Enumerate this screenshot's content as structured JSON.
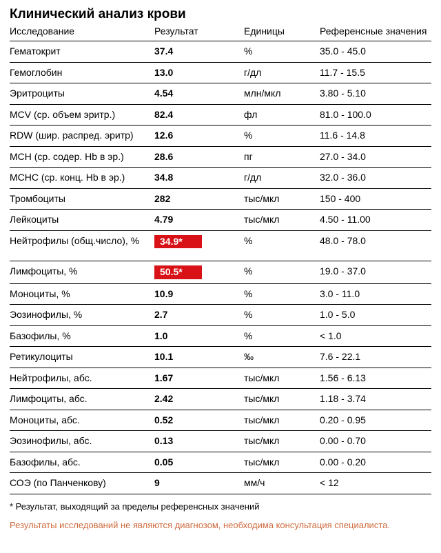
{
  "title": "Клинический анализ крови",
  "columns": [
    "Исследование",
    "Результат",
    "Единицы",
    "Референсные значения"
  ],
  "rows": [
    {
      "name": "Гематокрит",
      "result": "37.4",
      "unit": "%",
      "ref": "35.0 - 45.0",
      "flag": false
    },
    {
      "name": "Гемоглобин",
      "result": "13.0",
      "unit": "г/дл",
      "ref": "11.7 - 15.5",
      "flag": false
    },
    {
      "name": "Эритроциты",
      "result": "4.54",
      "unit": "млн/мкл",
      "ref": "3.80 - 5.10",
      "flag": false
    },
    {
      "name": "MCV (ср. объем эритр.)",
      "result": "82.4",
      "unit": "фл",
      "ref": "81.0 - 100.0",
      "flag": false
    },
    {
      "name": "RDW (шир. распред. эритр)",
      "result": "12.6",
      "unit": "%",
      "ref": "11.6 - 14.8",
      "flag": false
    },
    {
      "name": "MCH (ср. содер. Hb в эр.)",
      "result": "28.6",
      "unit": "пг",
      "ref": "27.0 - 34.0",
      "flag": false
    },
    {
      "name": "MCHC (ср. конц. Hb в эр.)",
      "result": "34.8",
      "unit": "г/дл",
      "ref": "32.0 - 36.0",
      "flag": false
    },
    {
      "name": "Тромбоциты",
      "result": "282",
      "unit": "тыс/мкл",
      "ref": "150 - 400",
      "flag": false
    },
    {
      "name": "Лейкоциты",
      "result": "4.79",
      "unit": "тыс/мкл",
      "ref": "4.50 - 11.00",
      "flag": false
    },
    {
      "name": "Нейтрофилы (общ.число), %",
      "result": "34.9*",
      "unit": "%",
      "ref": "48.0 - 78.0",
      "flag": true,
      "gapAfter": true
    },
    {
      "name": "Лимфоциты, %",
      "result": "50.5*",
      "unit": "%",
      "ref": "19.0 - 37.0",
      "flag": true
    },
    {
      "name": "Моноциты, %",
      "result": "10.9",
      "unit": "%",
      "ref": "3.0 - 11.0",
      "flag": false
    },
    {
      "name": "Эозинофилы, %",
      "result": "2.7",
      "unit": "%",
      "ref": "1.0 - 5.0",
      "flag": false
    },
    {
      "name": "Базофилы, %",
      "result": "1.0",
      "unit": "%",
      "ref": "< 1.0",
      "flag": false
    },
    {
      "name": "Ретикулоциты",
      "result": "10.1",
      "unit": "‰",
      "ref": "7.6 - 22.1",
      "flag": false
    },
    {
      "name": "Нейтрофилы, абс.",
      "result": "1.67",
      "unit": "тыс/мкл",
      "ref": "1.56 - 6.13",
      "flag": false
    },
    {
      "name": "Лимфоциты, абс.",
      "result": "2.42",
      "unit": "тыс/мкл",
      "ref": "1.18 - 3.74",
      "flag": false
    },
    {
      "name": "Моноциты, абс.",
      "result": "0.52",
      "unit": "тыс/мкл",
      "ref": "0.20 - 0.95",
      "flag": false
    },
    {
      "name": "Эозинофилы, абс.",
      "result": "0.13",
      "unit": "тыс/мкл",
      "ref": "0.00 - 0.70",
      "flag": false
    },
    {
      "name": "Базофилы, абс.",
      "result": "0.05",
      "unit": "тыс/мкл",
      "ref": "0.00 - 0.20",
      "flag": false
    },
    {
      "name": "СОЭ (по Панченкову)",
      "result": "9",
      "unit": "мм/ч",
      "ref": "< 12",
      "flag": false
    }
  ],
  "footnote": "* Результат, выходящий за пределы референсных значений",
  "disclaimer": "Результаты исследований не являются диагнозом, необходима консультация специалиста.",
  "style": {
    "flag_bg": "#d81216",
    "flag_fg": "#ffffff",
    "disclaimer_color": "#ce693c",
    "border_color": "#000000"
  }
}
